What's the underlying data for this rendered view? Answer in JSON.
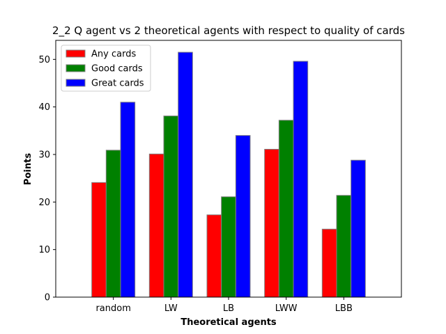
{
  "chart_data": {
    "type": "bar",
    "title": "2_2 Q agent vs 2 theoretical agents with respect to quality of cards",
    "xlabel": "Theoretical agents",
    "ylabel": "Points",
    "categories": [
      "random",
      "LW",
      "LB",
      "LWW",
      "LBB"
    ],
    "series": [
      {
        "name": "Any cards",
        "color": "#ff0000",
        "values": [
          24.1,
          30.1,
          17.3,
          31.1,
          14.3
        ]
      },
      {
        "name": "Good cards",
        "color": "#008000",
        "values": [
          30.9,
          38.1,
          21.1,
          37.2,
          21.4
        ]
      },
      {
        "name": "Great cards",
        "color": "#0000ff",
        "values": [
          41.0,
          51.5,
          34.0,
          49.6,
          28.8
        ]
      }
    ],
    "ylim": [
      0,
      54
    ],
    "yticks": [
      0,
      10,
      20,
      30,
      40,
      50
    ],
    "grid": false,
    "legend_position": "upper-left",
    "bar_edge_color": "#808080"
  }
}
